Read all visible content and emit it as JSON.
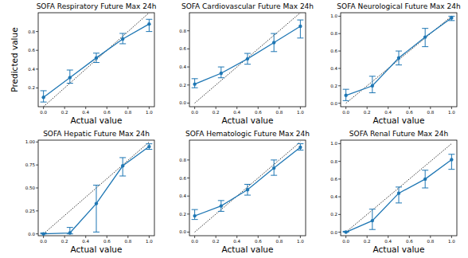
{
  "chart_data": [
    {
      "type": "line",
      "title": "SOFA Respiratory Future Max 24h",
      "x_label": "Actual value",
      "y_label": "Predicted value",
      "x": [
        0,
        0.25,
        0.5,
        0.75,
        1
      ],
      "xlim": [
        -0.05,
        1.05
      ],
      "ylim": [
        0.0,
        1.0
      ],
      "xticks": [
        {
          "value": 0,
          "label": "0.0"
        },
        {
          "value": 0.2,
          "label": "0.2"
        },
        {
          "value": 0.4,
          "label": "0.4"
        },
        {
          "value": 0.6,
          "label": "0.6"
        },
        {
          "value": 0.8,
          "label": "0.8"
        },
        {
          "value": 1,
          "label": "1.0"
        }
      ],
      "yticks": [
        {
          "value": 0.2,
          "label": "0.2"
        },
        {
          "value": 0.4,
          "label": "0.4"
        },
        {
          "value": 0.6,
          "label": "0.6"
        },
        {
          "value": 0.8,
          "label": "0.8"
        }
      ],
      "reference": {
        "x": [
          0,
          1
        ],
        "y": [
          0,
          1
        ],
        "line_style": "dotted"
      },
      "series": [
        {
          "color": "#1f77b4",
          "marker": "circle",
          "values": [
            0.1,
            0.31,
            0.52,
            0.72,
            0.88
          ],
          "lower": [
            0.05,
            0.25,
            0.47,
            0.67,
            0.8
          ],
          "upper": [
            0.17,
            0.39,
            0.57,
            0.78,
            0.93
          ]
        }
      ]
    },
    {
      "type": "line",
      "title": "SOFA Cardiovascular Future Max 24h",
      "x_label": "Actual value",
      "x": [
        0,
        0.25,
        0.5,
        0.75,
        1
      ],
      "xlim": [
        -0.05,
        1.05
      ],
      "ylim": [
        -0.04,
        1.0
      ],
      "xticks": [
        {
          "value": 0,
          "label": "0.0"
        },
        {
          "value": 0.2,
          "label": "0.2"
        },
        {
          "value": 0.4,
          "label": "0.4"
        },
        {
          "value": 0.6,
          "label": "0.6"
        },
        {
          "value": 0.8,
          "label": "0.8"
        },
        {
          "value": 1,
          "label": "1.0"
        }
      ],
      "yticks": [
        {
          "value": 0,
          "label": "0.0"
        },
        {
          "value": 0.2,
          "label": "0.2"
        },
        {
          "value": 0.4,
          "label": "0.4"
        },
        {
          "value": 0.6,
          "label": "0.6"
        },
        {
          "value": 0.8,
          "label": "0.8"
        }
      ],
      "reference": {
        "x": [
          0,
          1
        ],
        "y": [
          0,
          1
        ],
        "line_style": "dotted"
      },
      "series": [
        {
          "color": "#1f77b4",
          "marker": "circle",
          "values": [
            0.21,
            0.33,
            0.49,
            0.67,
            0.85
          ],
          "lower": [
            0.17,
            0.28,
            0.43,
            0.57,
            0.72
          ],
          "upper": [
            0.27,
            0.4,
            0.55,
            0.77,
            0.92
          ]
        }
      ]
    },
    {
      "type": "line",
      "title": "SOFA Neurological Future Max 24h",
      "x_label": "Actual value",
      "x": [
        0,
        0.25,
        0.5,
        0.75,
        1
      ],
      "xlim": [
        -0.05,
        1.05
      ],
      "ylim": [
        -0.04,
        1.04
      ],
      "xticks": [
        {
          "value": 0,
          "label": "0.0"
        },
        {
          "value": 0.2,
          "label": "0.2"
        },
        {
          "value": 0.4,
          "label": "0.4"
        },
        {
          "value": 0.6,
          "label": "0.6"
        },
        {
          "value": 0.8,
          "label": "0.8"
        },
        {
          "value": 1,
          "label": "1.0"
        }
      ],
      "yticks": [
        {
          "value": 0,
          "label": "0.0"
        },
        {
          "value": 0.2,
          "label": "0.2"
        },
        {
          "value": 0.4,
          "label": "0.4"
        },
        {
          "value": 0.6,
          "label": "0.6"
        },
        {
          "value": 0.8,
          "label": "0.8"
        },
        {
          "value": 1,
          "label": "1.0"
        }
      ],
      "reference": {
        "x": [
          0,
          1
        ],
        "y": [
          0,
          1
        ],
        "line_style": "dotted"
      },
      "series": [
        {
          "color": "#1f77b4",
          "marker": "circle",
          "values": [
            0.09,
            0.2,
            0.52,
            0.76,
            0.98
          ],
          "lower": [
            0.03,
            0.12,
            0.44,
            0.65,
            0.95
          ],
          "upper": [
            0.16,
            0.31,
            0.6,
            0.86,
            1.0
          ]
        }
      ]
    },
    {
      "type": "line",
      "title": "SOFA Hepatic Future Max 24h",
      "x_label": "Actual value",
      "x": [
        0,
        0.25,
        0.5,
        0.75,
        1
      ],
      "xlim": [
        -0.05,
        1.05
      ],
      "ylim": [
        -0.02,
        1.02
      ],
      "xticks": [
        {
          "value": 0,
          "label": "0.0"
        },
        {
          "value": 0.2,
          "label": "0.2"
        },
        {
          "value": 0.4,
          "label": "0.4"
        },
        {
          "value": 0.6,
          "label": "0.6"
        },
        {
          "value": 0.8,
          "label": "0.8"
        },
        {
          "value": 1,
          "label": "1.0"
        }
      ],
      "yticks": [
        {
          "value": 0,
          "label": "0.0"
        },
        {
          "value": 0.25,
          "label": "0.25"
        },
        {
          "value": 0.5,
          "label": "0.50"
        },
        {
          "value": 0.75,
          "label": "0.75"
        },
        {
          "value": 1,
          "label": "1.00"
        }
      ],
      "reference": {
        "x": [
          0,
          1
        ],
        "y": [
          0,
          1
        ],
        "line_style": "dotted"
      },
      "series": [
        {
          "color": "#1f77b4",
          "marker": "circle",
          "values": [
            0.0,
            0.01,
            0.33,
            0.74,
            0.95
          ],
          "lower": [
            0.0,
            0.0,
            0.02,
            0.63,
            0.92
          ],
          "upper": [
            0.01,
            0.07,
            0.53,
            0.83,
            0.98
          ]
        }
      ]
    },
    {
      "type": "line",
      "title": "SOFA Hematologic Future Max 24h",
      "x_label": "Actual value",
      "x": [
        0,
        0.25,
        0.5,
        0.75,
        1
      ],
      "xlim": [
        -0.05,
        1.05
      ],
      "ylim": [
        -0.04,
        1.02
      ],
      "xticks": [
        {
          "value": 0,
          "label": "0.0"
        },
        {
          "value": 0.2,
          "label": "0.2"
        },
        {
          "value": 0.4,
          "label": "0.4"
        },
        {
          "value": 0.6,
          "label": "0.6"
        },
        {
          "value": 0.8,
          "label": "0.8"
        },
        {
          "value": 1,
          "label": "1.0"
        }
      ],
      "yticks": [
        {
          "value": 0,
          "label": "0.0"
        },
        {
          "value": 0.2,
          "label": "0.2"
        },
        {
          "value": 0.4,
          "label": "0.4"
        },
        {
          "value": 0.6,
          "label": "0.6"
        },
        {
          "value": 0.8,
          "label": "0.8"
        }
      ],
      "reference": {
        "x": [
          0,
          1
        ],
        "y": [
          0,
          1
        ],
        "line_style": "dotted"
      },
      "series": [
        {
          "color": "#1f77b4",
          "marker": "circle",
          "values": [
            0.18,
            0.29,
            0.47,
            0.71,
            0.94
          ],
          "lower": [
            0.14,
            0.23,
            0.41,
            0.63,
            0.91
          ],
          "upper": [
            0.25,
            0.35,
            0.53,
            0.8,
            0.98
          ]
        }
      ]
    },
    {
      "type": "line",
      "title": "SOFA Renal Future Max 24h",
      "x_label": "Actual value",
      "x": [
        0,
        0.25,
        0.5,
        0.75,
        1
      ],
      "xlim": [
        -0.05,
        1.05
      ],
      "ylim": [
        -0.04,
        1.04
      ],
      "xticks": [
        {
          "value": 0,
          "label": "0.0"
        },
        {
          "value": 0.2,
          "label": "0.2"
        },
        {
          "value": 0.4,
          "label": "0.4"
        },
        {
          "value": 0.6,
          "label": "0.6"
        },
        {
          "value": 0.8,
          "label": "0.8"
        },
        {
          "value": 1,
          "label": "1.0"
        }
      ],
      "yticks": [
        {
          "value": 0,
          "label": "0.0"
        },
        {
          "value": 0.2,
          "label": "0.2"
        },
        {
          "value": 0.4,
          "label": "0.4"
        },
        {
          "value": 0.6,
          "label": "0.6"
        },
        {
          "value": 0.8,
          "label": "0.8"
        },
        {
          "value": 1,
          "label": "1.0"
        }
      ],
      "reference": {
        "x": [
          0,
          1
        ],
        "y": [
          0,
          1
        ],
        "line_style": "dotted"
      },
      "series": [
        {
          "color": "#1f77b4",
          "marker": "circle",
          "values": [
            0.0,
            0.13,
            0.44,
            0.6,
            0.82
          ],
          "lower": [
            0.0,
            0.03,
            0.33,
            0.5,
            0.71
          ],
          "upper": [
            0.01,
            0.26,
            0.51,
            0.7,
            0.88
          ]
        }
      ]
    }
  ]
}
